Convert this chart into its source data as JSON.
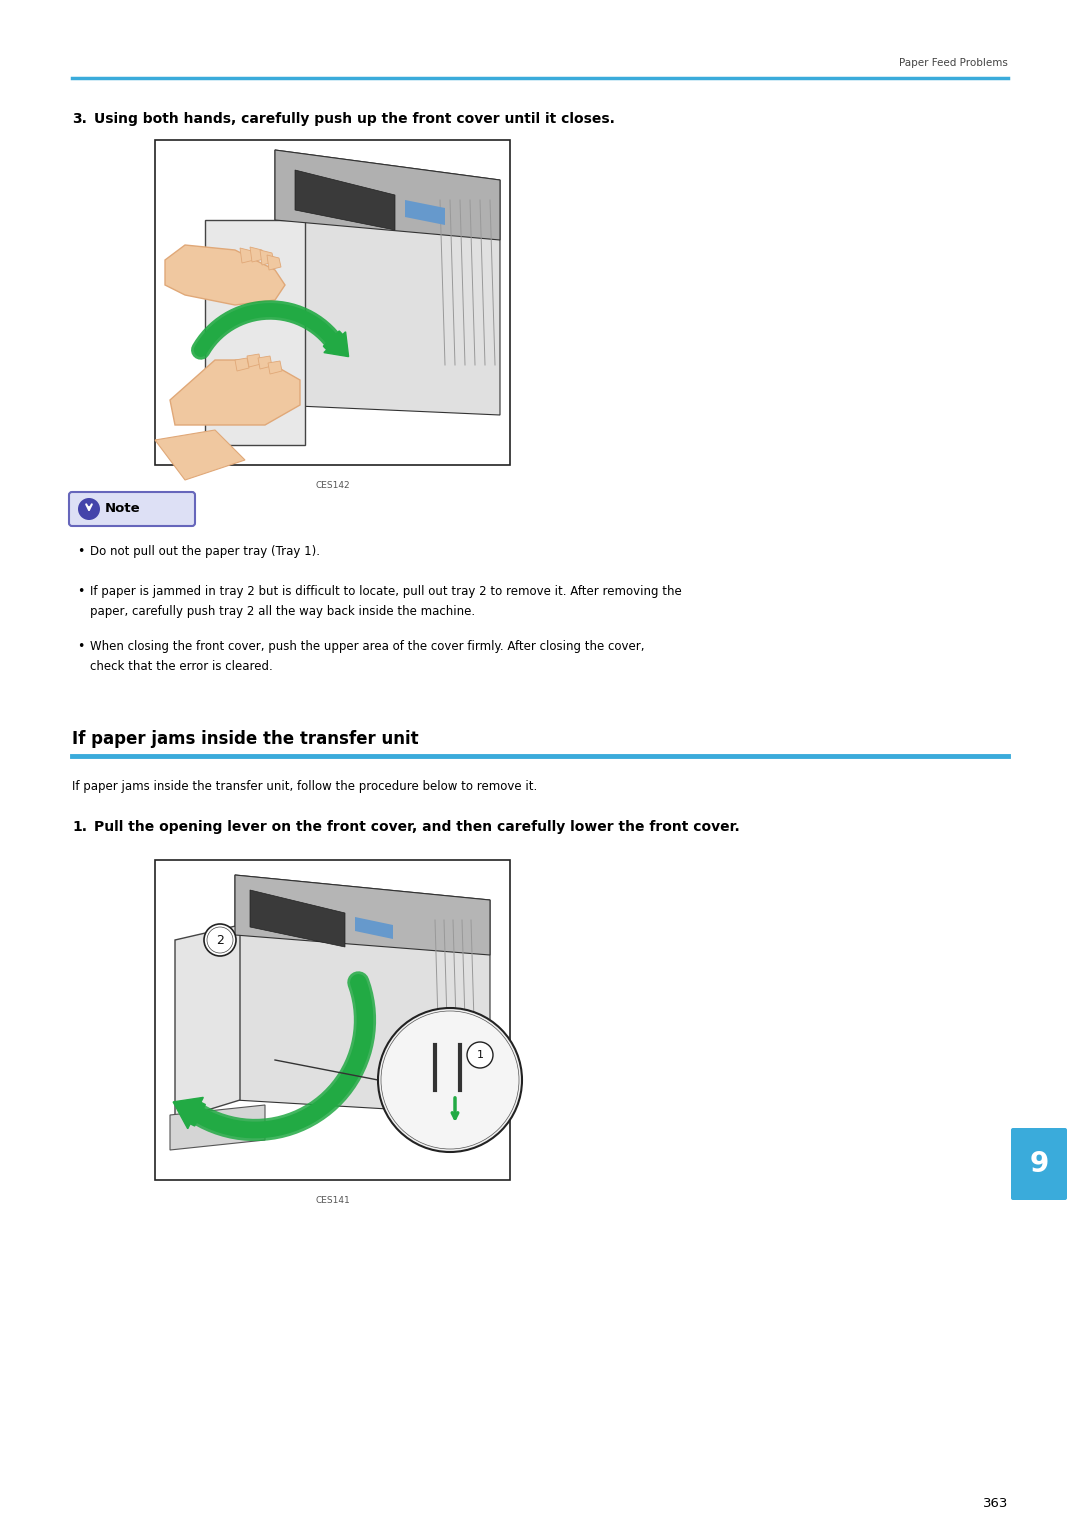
{
  "page_width": 10.8,
  "page_height": 15.32,
  "dpi": 100,
  "background_color": "#ffffff",
  "header_text": "Paper Feed Problems",
  "header_line_color": "#3aabdb",
  "page_number": "363",
  "section_title": "If paper jams inside the transfer unit",
  "section_line_color": "#3aabdb",
  "step3_label": "3.",
  "step3_text": "Using both hands, carefully push up the front cover until it closes.",
  "step1_label": "1.",
  "step1_text": "Pull the opening lever on the front cover, and then carefully lower the front cover.",
  "intro_text": "If paper jams inside the transfer unit, follow the procedure below to remove it.",
  "note_bullet1": "Do not pull out the paper tray (Tray 1).",
  "note_bullet2_line1": "If paper is jammed in tray 2 but is difficult to locate, pull out tray 2 to remove it. After removing the",
  "note_bullet2_line2": "paper, carefully push tray 2 all the way back inside the machine.",
  "note_bullet3_line1": "When closing the front cover, push the upper area of the cover firmly. After closing the cover,",
  "note_bullet3_line2": "check that the error is cleared.",
  "img1_label": "CES142",
  "img2_label": "CES141",
  "tab_number": "9",
  "tab_color": "#3aabdb",
  "note_border_color": "#6666bb",
  "note_bg_color": "#dde0f5",
  "note_icon_color": "#4444aa",
  "text_color": "#000000",
  "gray_text": "#555555",
  "header_text_color": "#444444",
  "line_gray": "#888888",
  "printer_body": "#d8d8d8",
  "printer_dark": "#555555",
  "printer_medium": "#aaaaaa",
  "green_arrow": "#22aa44",
  "skin_color": "#f0c8a0",
  "skin_dark": "#e0a878"
}
